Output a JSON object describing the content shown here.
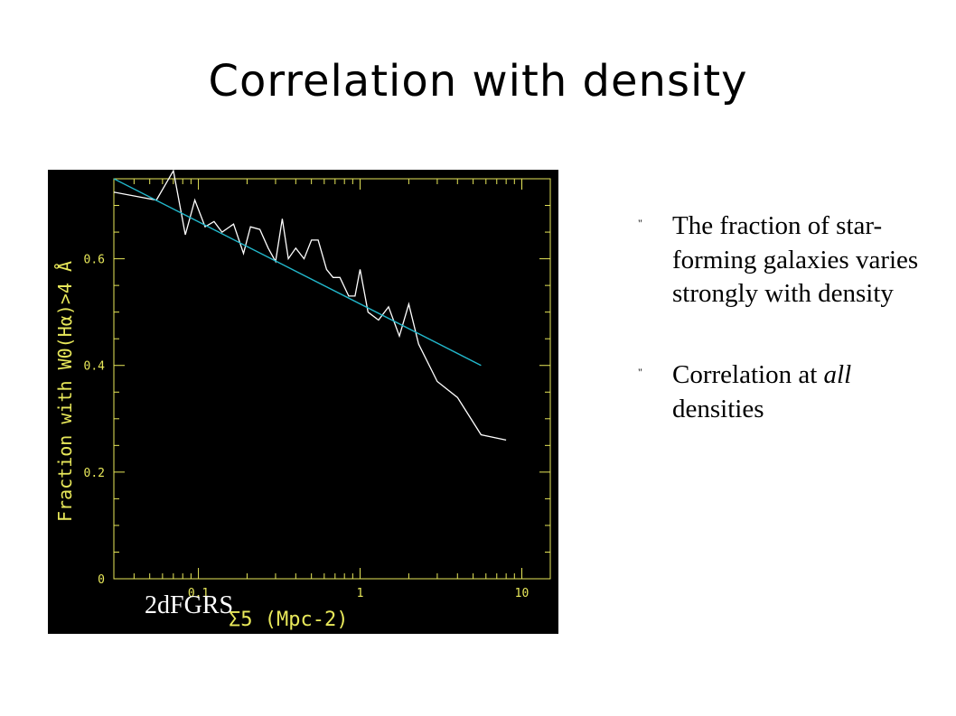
{
  "slide": {
    "title": "Correlation with density",
    "chart_label": "2dFGRS",
    "bullets": [
      {
        "mark": "\"",
        "parts": [
          "The fraction of star-forming galaxies varies strongly with density"
        ]
      },
      {
        "mark": "\"",
        "parts": [
          "Correlation at ",
          "all",
          " densities"
        ]
      }
    ]
  },
  "chart_data": {
    "type": "line",
    "xlabel": "Σ5 (Mpc-2)",
    "ylabel": "Fraction with W0(Hα)>4 Å",
    "x_scale": "log",
    "xlim": [
      0.03,
      15
    ],
    "ylim": [
      0,
      0.75
    ],
    "x_ticks": [
      "0.1",
      "1",
      "10"
    ],
    "y_ticks": [
      "0",
      "0.2",
      "0.4",
      "0.6"
    ],
    "grid": false,
    "colors": {
      "background": "#000000",
      "axes": "#e8e85a",
      "data": "#ffffff",
      "fit": "#22b8cc"
    },
    "series": [
      {
        "style": "data",
        "x": [
          0.03,
          0.055,
          0.07,
          0.083,
          0.095,
          0.11,
          0.125,
          0.14,
          0.165,
          0.19,
          0.21,
          0.24,
          0.27,
          0.3,
          0.33,
          0.36,
          0.4,
          0.45,
          0.5,
          0.55,
          0.62,
          0.68,
          0.75,
          0.85,
          0.93,
          1.0,
          1.12,
          1.3,
          1.5,
          1.75,
          2.0,
          2.3,
          3.0,
          4.0,
          5.6,
          8.0
        ],
        "y": [
          0.725,
          0.71,
          0.765,
          0.645,
          0.71,
          0.66,
          0.67,
          0.65,
          0.665,
          0.61,
          0.66,
          0.655,
          0.62,
          0.595,
          0.675,
          0.6,
          0.62,
          0.6,
          0.635,
          0.635,
          0.58,
          0.565,
          0.565,
          0.53,
          0.53,
          0.58,
          0.5,
          0.485,
          0.51,
          0.455,
          0.515,
          0.44,
          0.37,
          0.34,
          0.27,
          0.26
        ]
      },
      {
        "style": "fit",
        "x": [
          0.03,
          5.6
        ],
        "y": [
          0.75,
          0.4
        ]
      }
    ]
  }
}
